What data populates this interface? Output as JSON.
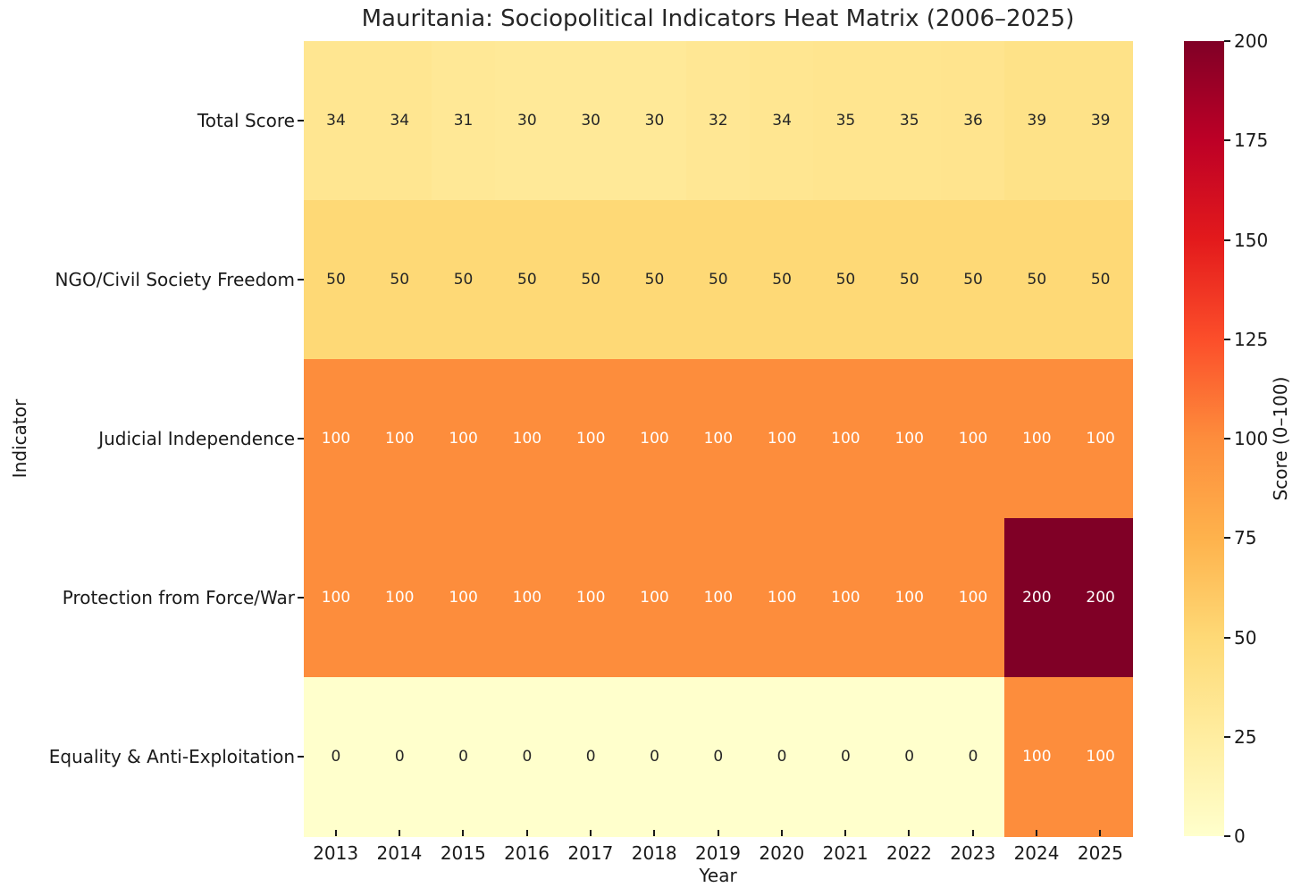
{
  "chart_data": {
    "type": "heatmap",
    "title": "Mauritania: Sociopolitical Indicators Heat Matrix (2006–2025)",
    "xlabel": "Year",
    "ylabel": "Indicator",
    "x_categories": [
      "2013",
      "2014",
      "2015",
      "2016",
      "2017",
      "2018",
      "2019",
      "2020",
      "2021",
      "2022",
      "2023",
      "2024",
      "2025"
    ],
    "y_categories": [
      "Total Score",
      "NGO/Civil Society Freedom",
      "Judicial Independence",
      "Protection from Force/War",
      "Equality & Anti-Exploitation"
    ],
    "series": [
      {
        "name": "Total Score",
        "values": [
          34,
          34,
          31,
          30,
          30,
          30,
          32,
          34,
          35,
          35,
          36,
          39,
          39
        ]
      },
      {
        "name": "NGO/Civil Society Freedom",
        "values": [
          50,
          50,
          50,
          50,
          50,
          50,
          50,
          50,
          50,
          50,
          50,
          50,
          50
        ]
      },
      {
        "name": "Judicial Independence",
        "values": [
          100,
          100,
          100,
          100,
          100,
          100,
          100,
          100,
          100,
          100,
          100,
          100,
          100
        ]
      },
      {
        "name": "Protection from Force/War",
        "values": [
          100,
          100,
          100,
          100,
          100,
          100,
          100,
          100,
          100,
          100,
          100,
          200,
          200
        ]
      },
      {
        "name": "Equality & Anti-Exploitation",
        "values": [
          0,
          0,
          0,
          0,
          0,
          0,
          0,
          0,
          0,
          0,
          0,
          100,
          100
        ]
      }
    ],
    "vmin": 0,
    "vmax": 200,
    "grid": false,
    "colormap": {
      "name": "YlOrRd",
      "stops": [
        {
          "pos": 0.0,
          "color": "#ffffcc"
        },
        {
          "pos": 0.125,
          "color": "#ffeda0"
        },
        {
          "pos": 0.25,
          "color": "#fed976"
        },
        {
          "pos": 0.375,
          "color": "#feb24c"
        },
        {
          "pos": 0.5,
          "color": "#fd8d3c"
        },
        {
          "pos": 0.625,
          "color": "#fc4e2a"
        },
        {
          "pos": 0.75,
          "color": "#e31a1c"
        },
        {
          "pos": 0.875,
          "color": "#bd0026"
        },
        {
          "pos": 1.0,
          "color": "#800026"
        }
      ]
    },
    "annotation_colors": {
      "dark": "#262626",
      "light": "#ffffff"
    },
    "colorbar": {
      "label": "Score (0–100)",
      "position": "right",
      "ticks": [
        0,
        25,
        50,
        75,
        100,
        125,
        150,
        175,
        200
      ]
    }
  }
}
